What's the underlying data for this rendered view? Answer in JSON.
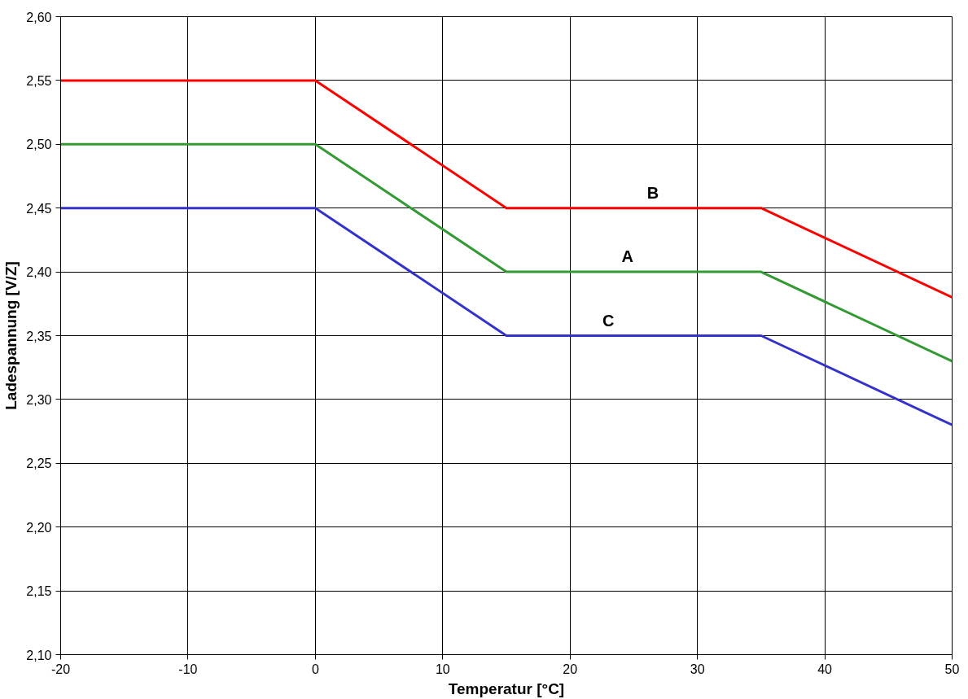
{
  "chart_data": {
    "type": "line",
    "xlabel": "Temperatur [°C]",
    "ylabel": "Ladespannung [V/Z]",
    "x": [
      -20,
      0,
      15,
      35,
      50
    ],
    "series": [
      {
        "name": "B",
        "color": "#ff0000",
        "values": [
          2.55,
          2.55,
          2.45,
          2.45,
          2.38
        ]
      },
      {
        "name": "A",
        "color": "#339933",
        "values": [
          2.5,
          2.5,
          2.4,
          2.4,
          2.33
        ]
      },
      {
        "name": "C",
        "color": "#3333cc",
        "values": [
          2.45,
          2.45,
          2.35,
          2.35,
          2.28
        ]
      }
    ],
    "xlim": [
      -20,
      50
    ],
    "xticks": [
      -20,
      -10,
      0,
      10,
      20,
      30,
      40,
      50
    ],
    "ylim": [
      2.1,
      2.6
    ],
    "yticks": [
      {
        "value": 2.1,
        "label": "2,10"
      },
      {
        "value": 2.15,
        "label": "2,15"
      },
      {
        "value": 2.2,
        "label": "2,20"
      },
      {
        "value": 2.25,
        "label": "2,25"
      },
      {
        "value": 2.3,
        "label": "2,30"
      },
      {
        "value": 2.35,
        "label": "2,35"
      },
      {
        "value": 2.4,
        "label": "2,40"
      },
      {
        "value": 2.45,
        "label": "2,45"
      },
      {
        "value": 2.5,
        "label": "2,50"
      },
      {
        "value": 2.55,
        "label": "2,55"
      },
      {
        "value": 2.6,
        "label": "2,60"
      }
    ],
    "grid": true,
    "marker": "none",
    "line_style": "solid"
  }
}
